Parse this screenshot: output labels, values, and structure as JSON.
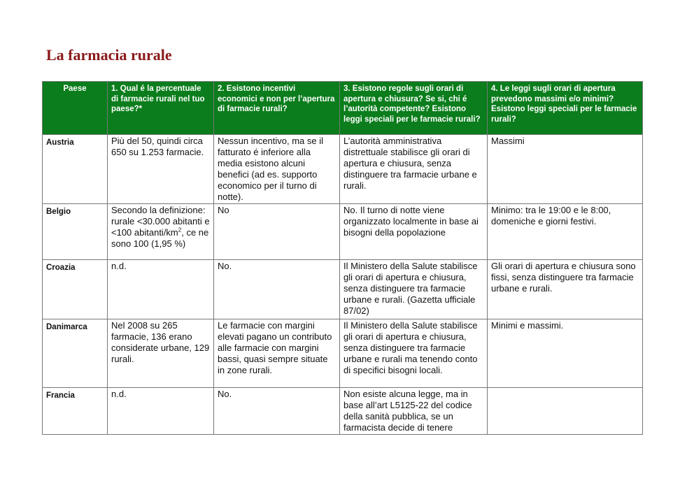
{
  "title": "La farmacia rurale",
  "headers": [
    "Paese",
    "1.  Qual é la percentuale di farmacie rurali nel tuo paese?*",
    "2.  Esistono incentivi economici e non per l’apertura di farmacie rurali?",
    "3.  Esistono regole sugli orari di apertura e chiusura? Se si, chi é l’autorità competente? Esistono leggi speciali per le farmacie rurali?",
    "4. Le leggi sugli orari di apertura prevedono massimi e/o minimi? Esistono leggi speciali per le farmacie rurali?"
  ],
  "rows": [
    {
      "country": "Austria",
      "q1": "Più del 50, quindi circa 650 su 1.253 farmacie.",
      "q2": "Nessun incentivo, ma se il fatturato é inferiore alla media esistono alcuni benefici (ad es. supporto economico per il turno di notte).",
      "q3": "L’autorità amministrativa distrettuale stabilisce gli orari di apertura e chiusura, senza distinguere tra farmacie urbane e rurali.",
      "q4": "Massimi"
    },
    {
      "country": "Belgio",
      "q1_a": "Secondo la definizione: rurale <30.000 abitanti e <100 abitanti/km",
      "q1_sup": "2",
      "q1_b": ", ce ne sono 100 (1,95 %)",
      "q2": "No",
      "q3": "No.  Il turno di notte viene organizzato localmente in base ai bisogni della popolazione",
      "q4": "Minimo: tra le 19:00 e le 8:00, domeniche e giorni festivi."
    },
    {
      "country": "Croazia",
      "q1": "n.d.",
      "q2": "No.",
      "q3": "Il Ministero della Salute stabilisce gli orari di apertura e chiusura, senza distinguere tra farmacie urbane e rurali. (Gazetta ufficiale 87/02)",
      "q4": "Gli orari di apertura e chiusura sono fissi, senza distinguere tra farmacie urbane e rurali."
    },
    {
      "country": "Danimarca",
      "q1": "Nel 2008 su 265 farmacie, 136 erano considerate urbane, 129 rurali.",
      "q2": "Le farmacie con margini elevati pagano un contributo alle farmacie con margini bassi, quasi sempre situate in zone rurali.",
      "q3": "Il Ministero della Salute stabilisce gli orari di apertura e chiusura, senza distinguere tra farmacie urbane e rurali ma tenendo conto di specifici bisogni locali.",
      "q4": "Minimi e massimi."
    },
    {
      "country": "Francia",
      "q1": "n.d.",
      "q2": "No.",
      "q3": "Non esiste alcuna legge, ma in base all’art L5125-22 del codice della sanità pubblica, se un farmacista decide di tenere",
      "q4": ""
    }
  ]
}
